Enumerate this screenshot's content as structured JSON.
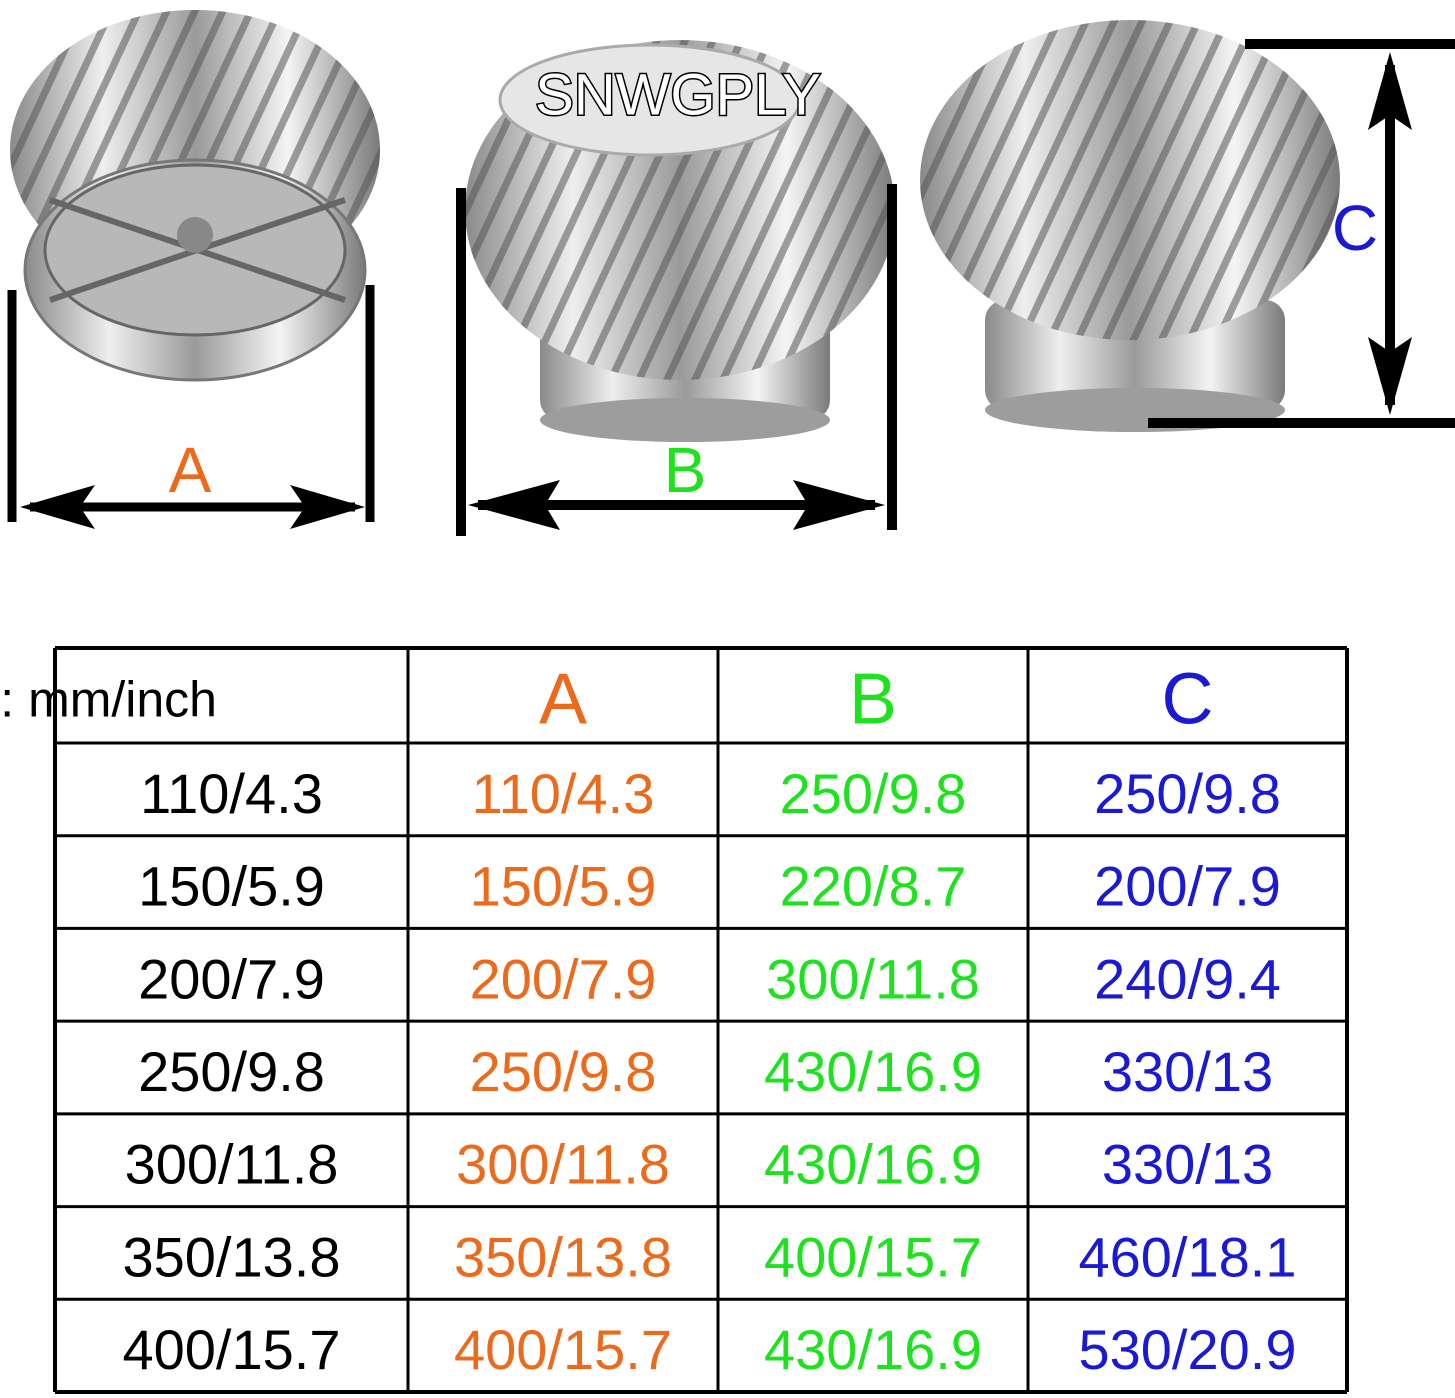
{
  "brand": "SNWGPLY",
  "diagram": {
    "labels": [
      "A",
      "B",
      "C"
    ]
  },
  "table": {
    "header": [
      "Size: mm/inch",
      "A",
      "B",
      "C"
    ],
    "rows": [
      [
        "110/4.3",
        "110/4.3",
        "250/9.8",
        "250/9.8"
      ],
      [
        "150/5.9",
        "150/5.9",
        "220/8.7",
        "200/7.9"
      ],
      [
        "200/7.9",
        "200/7.9",
        "300/11.8",
        "240/9.4"
      ],
      [
        "250/9.8",
        "250/9.8",
        "430/16.9",
        "330/13"
      ],
      [
        "300/11.8",
        "300/11.8",
        "430/16.9",
        "330/13"
      ],
      [
        "350/13.8",
        "350/13.8",
        "400/15.7",
        "460/18.1"
      ],
      [
        "400/15.7",
        "400/15.7",
        "430/16.9",
        "530/20.9"
      ]
    ]
  }
}
